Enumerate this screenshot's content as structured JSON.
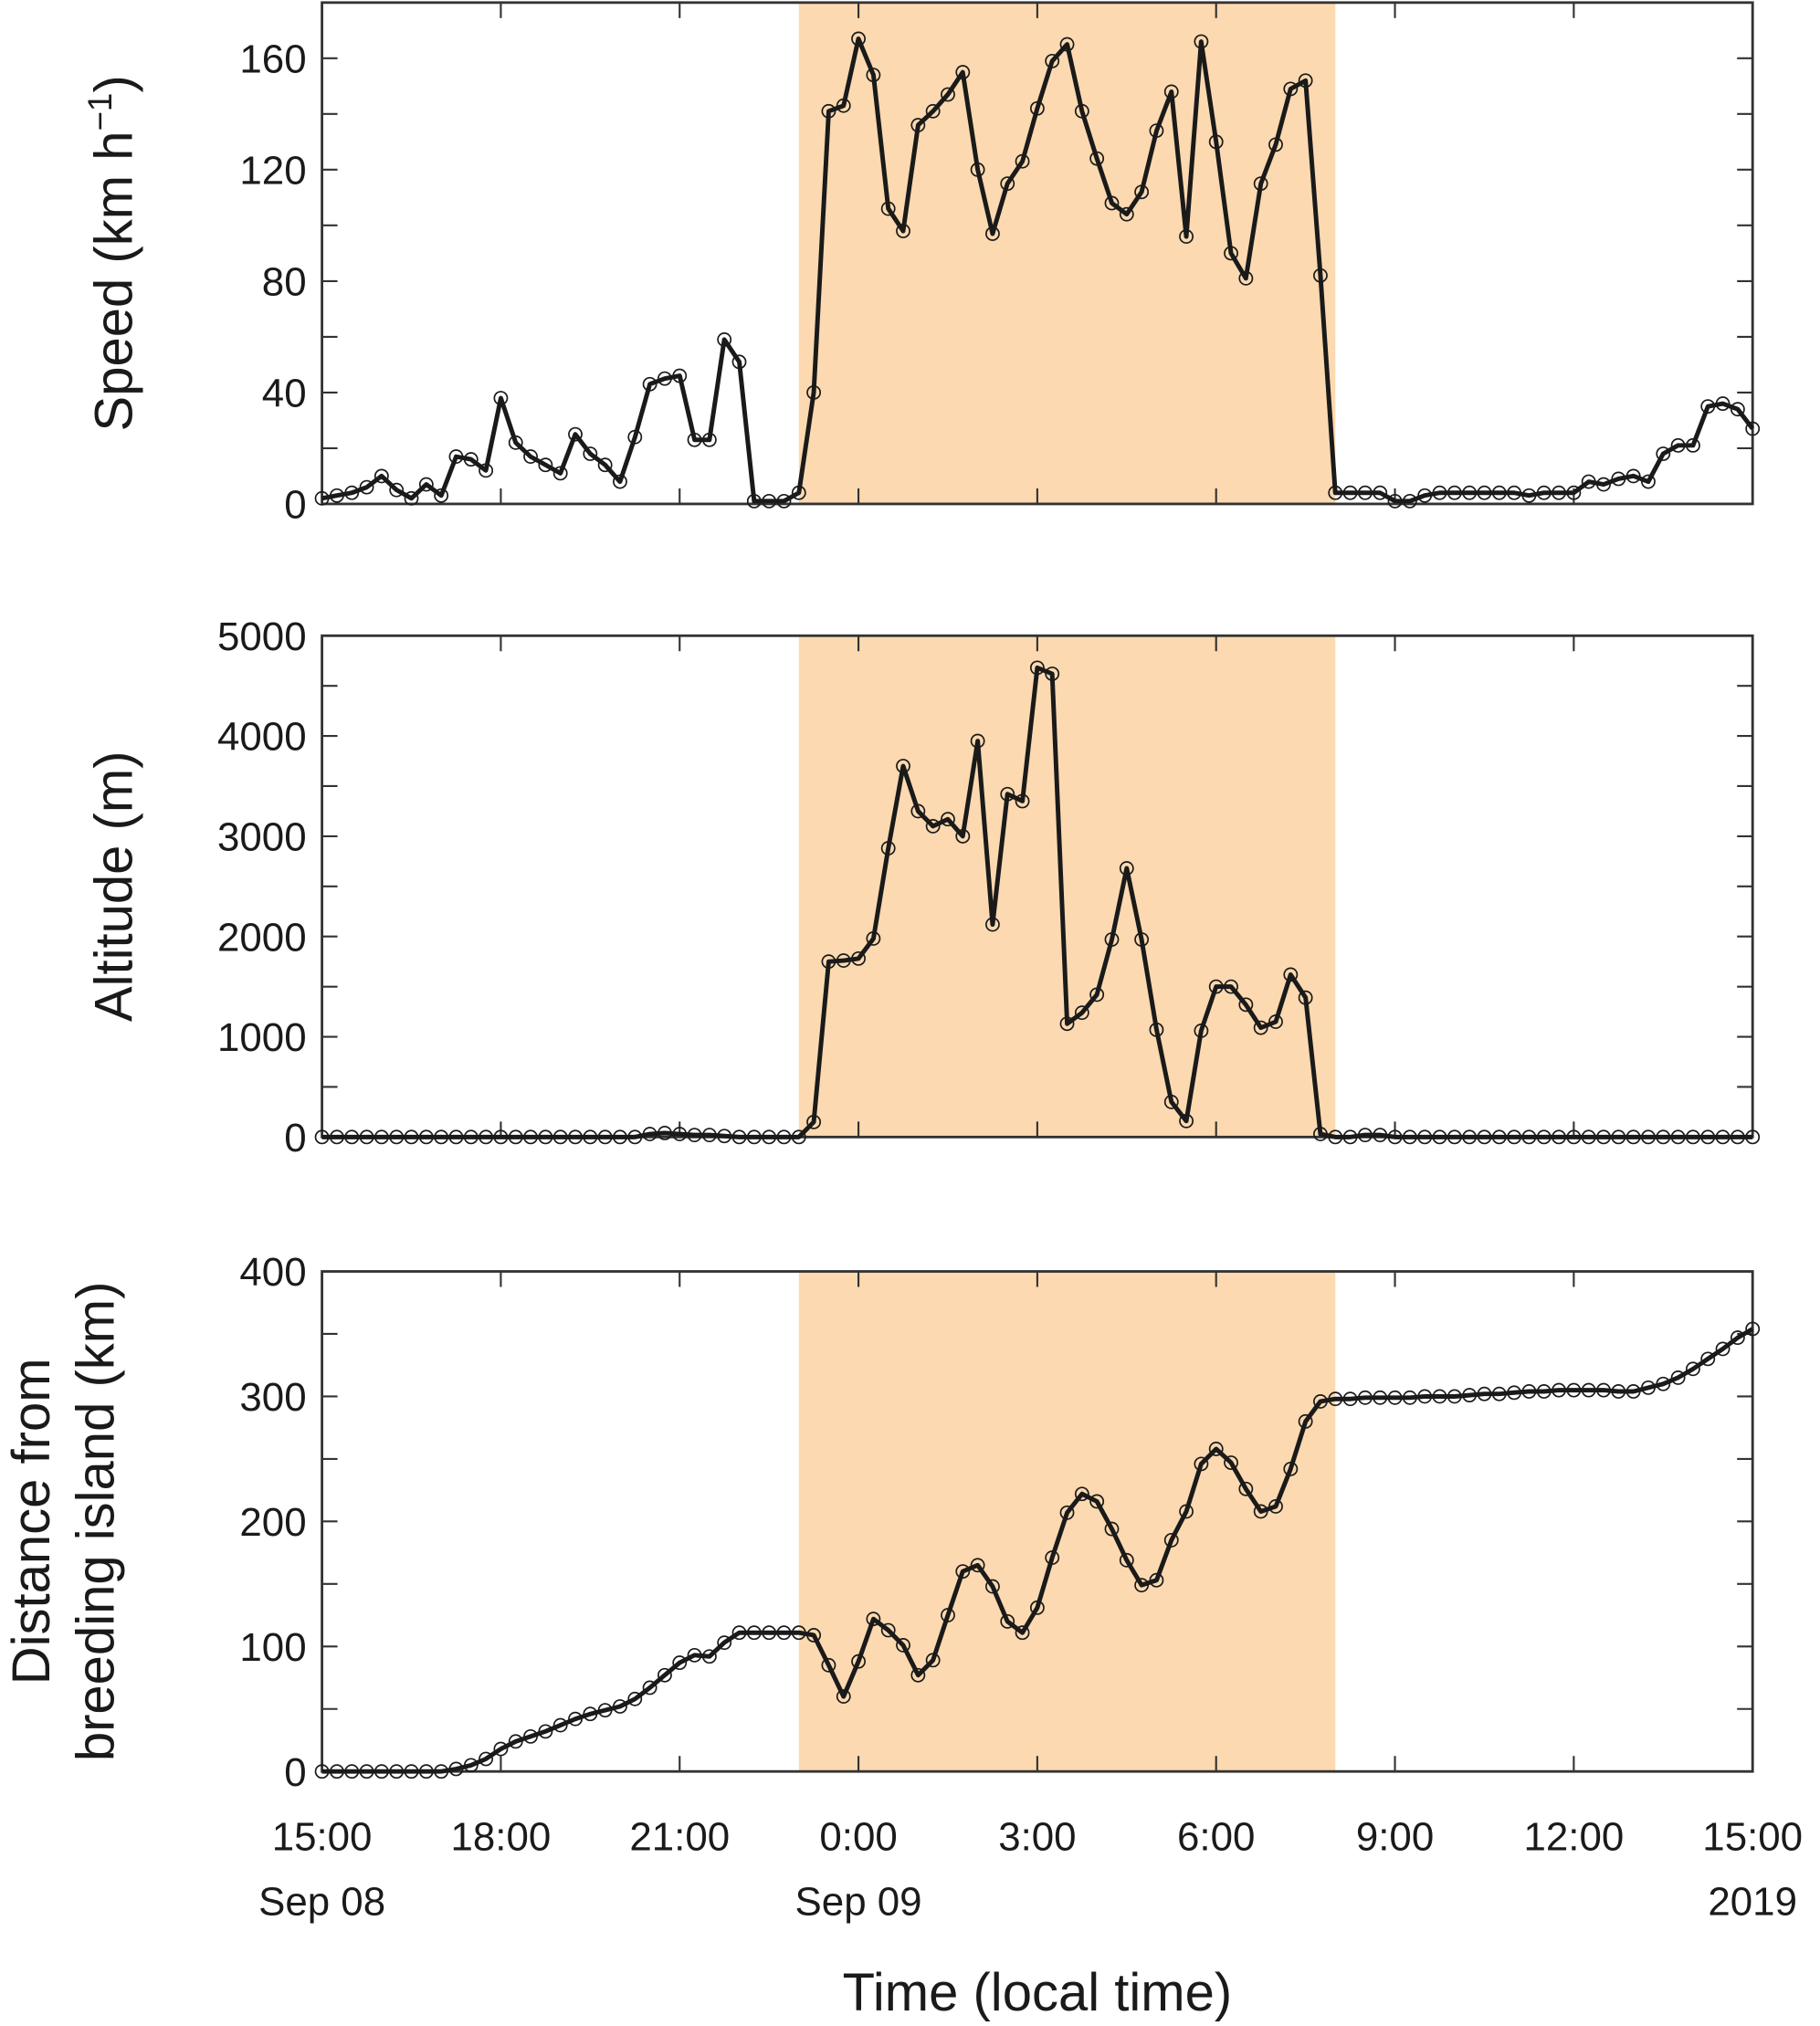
{
  "chart_data": [
    {
      "type": "line",
      "ylabel": "Speed (km h",
      "ylabel_sup": "−1",
      "ylabel_end": ")",
      "x": [
        "2019-09-08 15:00",
        "2019-09-08 15:15",
        "2019-09-08 15:30",
        "2019-09-08 15:45",
        "2019-09-08 16:00",
        "2019-09-08 16:15",
        "2019-09-08 16:30",
        "2019-09-08 16:45",
        "2019-09-08 17:00",
        "2019-09-08 17:15",
        "2019-09-08 17:30",
        "2019-09-08 17:45",
        "2019-09-08 18:00",
        "2019-09-08 18:15",
        "2019-09-08 18:30",
        "2019-09-08 18:45",
        "2019-09-08 19:00",
        "2019-09-08 19:15",
        "2019-09-08 19:30",
        "2019-09-08 19:45",
        "2019-09-08 20:00",
        "2019-09-08 20:15",
        "2019-09-08 20:30",
        "2019-09-08 20:45",
        "2019-09-08 21:00",
        "2019-09-08 21:15",
        "2019-09-08 21:30",
        "2019-09-08 21:45",
        "2019-09-08 22:00",
        "2019-09-08 22:15",
        "2019-09-08 22:30",
        "2019-09-08 22:45",
        "2019-09-08 23:00",
        "2019-09-08 23:15",
        "2019-09-08 23:30",
        "2019-09-08 23:45",
        "2019-09-09 00:00",
        "2019-09-09 00:15",
        "2019-09-09 00:30",
        "2019-09-09 00:45",
        "2019-09-09 01:00",
        "2019-09-09 01:15",
        "2019-09-09 01:30",
        "2019-09-09 01:45",
        "2019-09-09 02:00",
        "2019-09-09 02:15",
        "2019-09-09 02:30",
        "2019-09-09 02:45",
        "2019-09-09 03:00",
        "2019-09-09 03:15",
        "2019-09-09 03:30",
        "2019-09-09 03:45",
        "2019-09-09 04:00",
        "2019-09-09 04:15",
        "2019-09-09 04:30",
        "2019-09-09 04:45",
        "2019-09-09 05:00",
        "2019-09-09 05:15",
        "2019-09-09 05:30",
        "2019-09-09 05:45",
        "2019-09-09 06:00",
        "2019-09-09 06:15",
        "2019-09-09 06:30",
        "2019-09-09 06:45",
        "2019-09-09 07:00",
        "2019-09-09 07:15",
        "2019-09-09 07:30",
        "2019-09-09 07:45",
        "2019-09-09 08:00",
        "2019-09-09 08:15",
        "2019-09-09 08:30",
        "2019-09-09 08:45",
        "2019-09-09 09:00",
        "2019-09-09 09:15",
        "2019-09-09 09:30",
        "2019-09-09 09:45",
        "2019-09-09 10:00",
        "2019-09-09 10:15",
        "2019-09-09 10:30",
        "2019-09-09 10:45",
        "2019-09-09 11:00",
        "2019-09-09 11:15",
        "2019-09-09 11:30",
        "2019-09-09 11:45",
        "2019-09-09 12:00",
        "2019-09-09 12:15",
        "2019-09-09 12:30",
        "2019-09-09 12:45",
        "2019-09-09 13:00",
        "2019-09-09 13:15",
        "2019-09-09 13:30",
        "2019-09-09 13:45",
        "2019-09-09 14:00",
        "2019-09-09 14:15",
        "2019-09-09 14:30",
        "2019-09-09 14:45",
        "2019-09-09 15:00"
      ],
      "values": [
        2,
        3,
        4,
        6,
        10,
        5,
        2,
        7,
        3,
        17,
        16,
        12,
        38,
        22,
        17,
        14,
        11,
        25,
        18,
        14,
        8,
        24,
        43,
        45,
        46,
        23,
        23,
        59,
        51,
        1,
        1,
        1,
        4,
        40,
        141,
        143,
        167,
        154,
        106,
        98,
        136,
        141,
        147,
        155,
        120,
        97,
        115,
        123,
        142,
        159,
        165,
        141,
        124,
        108,
        104,
        112,
        134,
        148,
        96,
        166,
        130,
        90,
        81,
        115,
        129,
        149,
        152,
        82,
        4,
        4,
        4,
        4,
        1,
        1,
        3,
        4,
        4,
        4,
        4,
        4,
        4,
        3,
        4,
        4,
        4,
        8,
        7,
        9,
        10,
        8,
        18,
        21,
        21,
        35,
        36,
        34,
        27
      ],
      "color": "#1a1a1a",
      "xlim": [
        "2019-09-08 15:00",
        "2019-09-09 15:00"
      ],
      "ylim": [
        0,
        180
      ],
      "yticks": [
        0,
        40,
        80,
        120,
        160
      ],
      "yminor": [
        20,
        60,
        100,
        140
      ],
      "shaded": [
        "2019-09-08 23:00",
        "2019-09-09 08:00"
      ],
      "shade_color": "#fcd9b0"
    },
    {
      "type": "line",
      "ylabel": "Altitude (m)",
      "x": [
        "2019-09-08 15:00",
        "2019-09-08 15:15",
        "2019-09-08 15:30",
        "2019-09-08 15:45",
        "2019-09-08 16:00",
        "2019-09-08 16:15",
        "2019-09-08 16:30",
        "2019-09-08 16:45",
        "2019-09-08 17:00",
        "2019-09-08 17:15",
        "2019-09-08 17:30",
        "2019-09-08 17:45",
        "2019-09-08 18:00",
        "2019-09-08 18:15",
        "2019-09-08 18:30",
        "2019-09-08 18:45",
        "2019-09-08 19:00",
        "2019-09-08 19:15",
        "2019-09-08 19:30",
        "2019-09-08 19:45",
        "2019-09-08 20:00",
        "2019-09-08 20:15",
        "2019-09-08 20:30",
        "2019-09-08 20:45",
        "2019-09-08 21:00",
        "2019-09-08 21:15",
        "2019-09-08 21:30",
        "2019-09-08 21:45",
        "2019-09-08 22:00",
        "2019-09-08 22:15",
        "2019-09-08 22:30",
        "2019-09-08 22:45",
        "2019-09-08 23:00",
        "2019-09-08 23:15",
        "2019-09-08 23:30",
        "2019-09-08 23:45",
        "2019-09-09 00:00",
        "2019-09-09 00:15",
        "2019-09-09 00:30",
        "2019-09-09 00:45",
        "2019-09-09 01:00",
        "2019-09-09 01:15",
        "2019-09-09 01:30",
        "2019-09-09 01:45",
        "2019-09-09 02:00",
        "2019-09-09 02:15",
        "2019-09-09 02:30",
        "2019-09-09 02:45",
        "2019-09-09 03:00",
        "2019-09-09 03:15",
        "2019-09-09 03:30",
        "2019-09-09 03:45",
        "2019-09-09 04:00",
        "2019-09-09 04:15",
        "2019-09-09 04:30",
        "2019-09-09 04:45",
        "2019-09-09 05:00",
        "2019-09-09 05:15",
        "2019-09-09 05:30",
        "2019-09-09 05:45",
        "2019-09-09 06:00",
        "2019-09-09 06:15",
        "2019-09-09 06:30",
        "2019-09-09 06:45",
        "2019-09-09 07:00",
        "2019-09-09 07:15",
        "2019-09-09 07:30",
        "2019-09-09 07:45",
        "2019-09-09 08:00",
        "2019-09-09 08:15",
        "2019-09-09 08:30",
        "2019-09-09 08:45",
        "2019-09-09 09:00",
        "2019-09-09 09:15",
        "2019-09-09 09:30",
        "2019-09-09 09:45",
        "2019-09-09 10:00",
        "2019-09-09 10:15",
        "2019-09-09 10:30",
        "2019-09-09 10:45",
        "2019-09-09 11:00",
        "2019-09-09 11:15",
        "2019-09-09 11:30",
        "2019-09-09 11:45",
        "2019-09-09 12:00",
        "2019-09-09 12:15",
        "2019-09-09 12:30",
        "2019-09-09 12:45",
        "2019-09-09 13:00",
        "2019-09-09 13:15",
        "2019-09-09 13:30",
        "2019-09-09 13:45",
        "2019-09-09 14:00",
        "2019-09-09 14:15",
        "2019-09-09 14:30",
        "2019-09-09 14:45",
        "2019-09-09 15:00"
      ],
      "values": [
        0,
        0,
        0,
        0,
        0,
        0,
        0,
        0,
        0,
        0,
        0,
        0,
        0,
        0,
        0,
        0,
        0,
        0,
        0,
        0,
        0,
        0,
        30,
        40,
        30,
        20,
        20,
        10,
        0,
        0,
        0,
        0,
        0,
        150,
        1750,
        1760,
        1780,
        1980,
        2880,
        3700,
        3250,
        3100,
        3170,
        3000,
        3950,
        2120,
        3420,
        3350,
        4680,
        4620,
        1130,
        1240,
        1420,
        1970,
        2680,
        1970,
        1070,
        350,
        160,
        1060,
        1500,
        1500,
        1320,
        1090,
        1150,
        1620,
        1390,
        30,
        0,
        0,
        20,
        20,
        0,
        0,
        0,
        0,
        0,
        0,
        0,
        0,
        0,
        0,
        0,
        0,
        0,
        0,
        0,
        0,
        0,
        0,
        0,
        0,
        0,
        0,
        0,
        0,
        0
      ],
      "color": "#1a1a1a",
      "xlim": [
        "2019-09-08 15:00",
        "2019-09-09 15:00"
      ],
      "ylim": [
        0,
        5000
      ],
      "yticks": [
        0,
        1000,
        2000,
        3000,
        4000,
        5000
      ],
      "yminor": [
        500,
        1500,
        2500,
        3500,
        4500
      ],
      "shaded": [
        "2019-09-08 23:00",
        "2019-09-09 08:00"
      ],
      "shade_color": "#fcd9b0"
    },
    {
      "type": "line",
      "ylabel": [
        "Distance from",
        "breeding island (km)"
      ],
      "xlabel": "Time (local time)",
      "x": [
        "2019-09-08 15:00",
        "2019-09-08 15:15",
        "2019-09-08 15:30",
        "2019-09-08 15:45",
        "2019-09-08 16:00",
        "2019-09-08 16:15",
        "2019-09-08 16:30",
        "2019-09-08 16:45",
        "2019-09-08 17:00",
        "2019-09-08 17:15",
        "2019-09-08 17:30",
        "2019-09-08 17:45",
        "2019-09-08 18:00",
        "2019-09-08 18:15",
        "2019-09-08 18:30",
        "2019-09-08 18:45",
        "2019-09-08 19:00",
        "2019-09-08 19:15",
        "2019-09-08 19:30",
        "2019-09-08 19:45",
        "2019-09-08 20:00",
        "2019-09-08 20:15",
        "2019-09-08 20:30",
        "2019-09-08 20:45",
        "2019-09-08 21:00",
        "2019-09-08 21:15",
        "2019-09-08 21:30",
        "2019-09-08 21:45",
        "2019-09-08 22:00",
        "2019-09-08 22:15",
        "2019-09-08 22:30",
        "2019-09-08 22:45",
        "2019-09-08 23:00",
        "2019-09-08 23:15",
        "2019-09-08 23:30",
        "2019-09-08 23:45",
        "2019-09-09 00:00",
        "2019-09-09 00:15",
        "2019-09-09 00:30",
        "2019-09-09 00:45",
        "2019-09-09 01:00",
        "2019-09-09 01:15",
        "2019-09-09 01:30",
        "2019-09-09 01:45",
        "2019-09-09 02:00",
        "2019-09-09 02:15",
        "2019-09-09 02:30",
        "2019-09-09 02:45",
        "2019-09-09 03:00",
        "2019-09-09 03:15",
        "2019-09-09 03:30",
        "2019-09-09 03:45",
        "2019-09-09 04:00",
        "2019-09-09 04:15",
        "2019-09-09 04:30",
        "2019-09-09 04:45",
        "2019-09-09 05:00",
        "2019-09-09 05:15",
        "2019-09-09 05:30",
        "2019-09-09 05:45",
        "2019-09-09 06:00",
        "2019-09-09 06:15",
        "2019-09-09 06:30",
        "2019-09-09 06:45",
        "2019-09-09 07:00",
        "2019-09-09 07:15",
        "2019-09-09 07:30",
        "2019-09-09 07:45",
        "2019-09-09 08:00",
        "2019-09-09 08:15",
        "2019-09-09 08:30",
        "2019-09-09 08:45",
        "2019-09-09 09:00",
        "2019-09-09 09:15",
        "2019-09-09 09:30",
        "2019-09-09 09:45",
        "2019-09-09 10:00",
        "2019-09-09 10:15",
        "2019-09-09 10:30",
        "2019-09-09 10:45",
        "2019-09-09 11:00",
        "2019-09-09 11:15",
        "2019-09-09 11:30",
        "2019-09-09 11:45",
        "2019-09-09 12:00",
        "2019-09-09 12:15",
        "2019-09-09 12:30",
        "2019-09-09 12:45",
        "2019-09-09 13:00",
        "2019-09-09 13:15",
        "2019-09-09 13:30",
        "2019-09-09 13:45",
        "2019-09-09 14:00",
        "2019-09-09 14:15",
        "2019-09-09 14:30",
        "2019-09-09 14:45",
        "2019-09-09 15:00"
      ],
      "values": [
        0,
        0,
        0,
        0,
        0,
        0,
        0,
        0,
        0,
        2,
        5,
        10,
        18,
        24,
        28,
        32,
        37,
        42,
        46,
        49,
        52,
        58,
        67,
        77,
        87,
        93,
        92,
        103,
        111,
        111,
        111,
        111,
        111,
        109,
        85,
        60,
        88,
        122,
        113,
        101,
        77,
        89,
        125,
        160,
        165,
        148,
        120,
        111,
        131,
        171,
        207,
        222,
        216,
        194,
        169,
        149,
        153,
        185,
        208,
        246,
        258,
        247,
        226,
        208,
        212,
        242,
        280,
        296,
        298,
        298,
        299,
        299,
        299,
        299,
        300,
        300,
        300,
        301,
        302,
        302,
        303,
        304,
        304,
        305,
        305,
        305,
        305,
        304,
        304,
        307,
        310,
        315,
        322,
        330,
        338,
        347,
        354
      ],
      "color": "#1a1a1a",
      "xlim": [
        "2019-09-08 15:00",
        "2019-09-09 15:00"
      ],
      "ylim": [
        0,
        400
      ],
      "yticks": [
        0,
        100,
        200,
        300,
        400
      ],
      "yminor": [
        50,
        150,
        250,
        350
      ],
      "xticks": [
        {
          "value": "2019-09-08 15:00",
          "label": "15:00"
        },
        {
          "value": "2019-09-08 18:00",
          "label": "18:00"
        },
        {
          "value": "2019-09-08 21:00",
          "label": "21:00"
        },
        {
          "value": "2019-09-09 00:00",
          "label": "0:00"
        },
        {
          "value": "2019-09-09 03:00",
          "label": "3:00"
        },
        {
          "value": "2019-09-09 06:00",
          "label": "6:00"
        },
        {
          "value": "2019-09-09 09:00",
          "label": "9:00"
        },
        {
          "value": "2019-09-09 12:00",
          "label": "12:00"
        },
        {
          "value": "2019-09-09 15:00",
          "label": "15:00"
        }
      ],
      "xtick_sublabels": [
        {
          "value": "2019-09-08 15:00",
          "label": "Sep 08"
        },
        {
          "value": "2019-09-09 00:00",
          "label": "Sep 09"
        },
        {
          "value": "2019-09-09 15:00",
          "label": "2019"
        }
      ],
      "shaded": [
        "2019-09-08 23:00",
        "2019-09-09 08:00"
      ],
      "shade_color": "#fcd9b0"
    }
  ]
}
